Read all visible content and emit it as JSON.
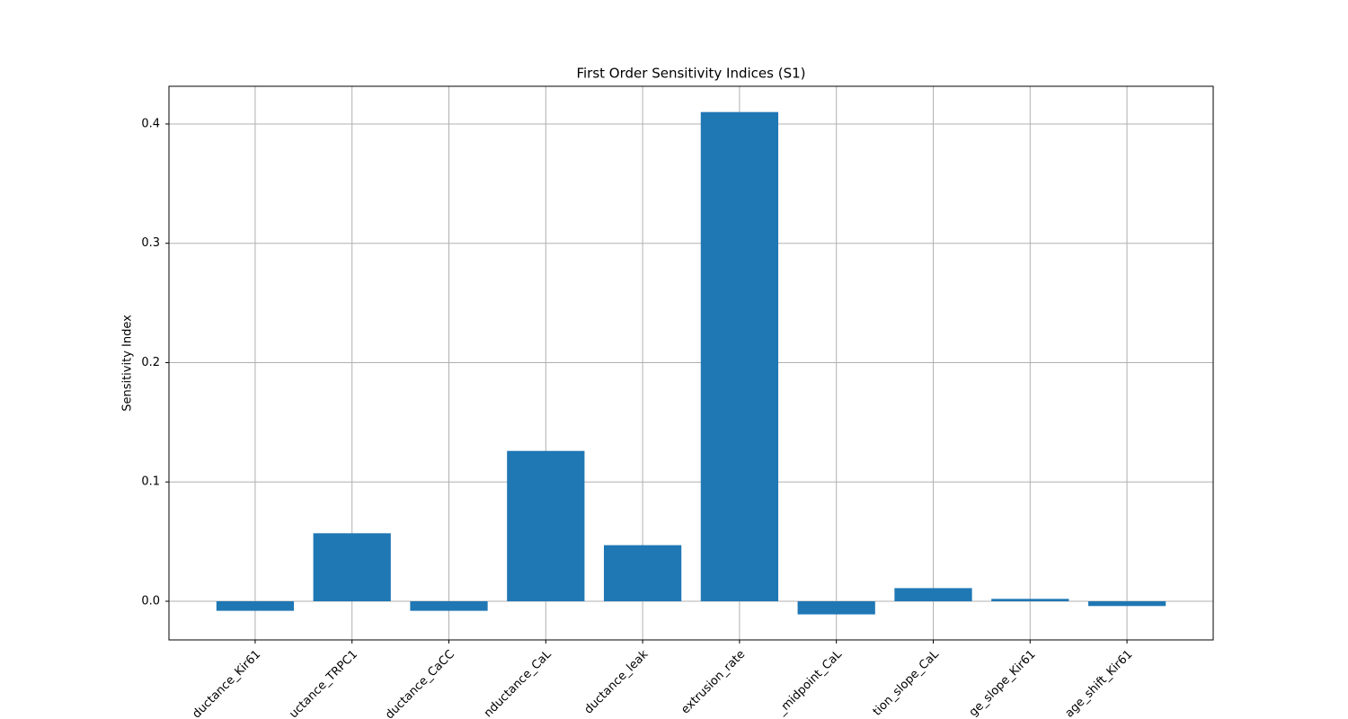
{
  "chart_data": {
    "type": "bar",
    "title": "First Order Sensitivity Indices (S1)",
    "y_label": "Sensitivity Index",
    "categories": [
      "ductance_Kir61",
      "uctance_TRPC1",
      "ductance_CaCC",
      "nductance_CaL",
      "ductance_leak",
      "extrusion_rate",
      "_midpoint_CaL",
      "tion_slope_CaL",
      "ge_slope_Kir61",
      "age_shift_Kir61"
    ],
    "values": [
      -0.008,
      0.057,
      -0.008,
      0.126,
      0.047,
      0.41,
      -0.011,
      0.011,
      0.002,
      -0.004
    ],
    "color": "#1f77b4",
    "ylim": [
      -0.0324,
      0.4316
    ],
    "yticks": [
      {
        "value": 0,
        "label": "0.0"
      },
      0.1,
      0.2,
      0.3,
      0.4
    ],
    "grid": true
  }
}
